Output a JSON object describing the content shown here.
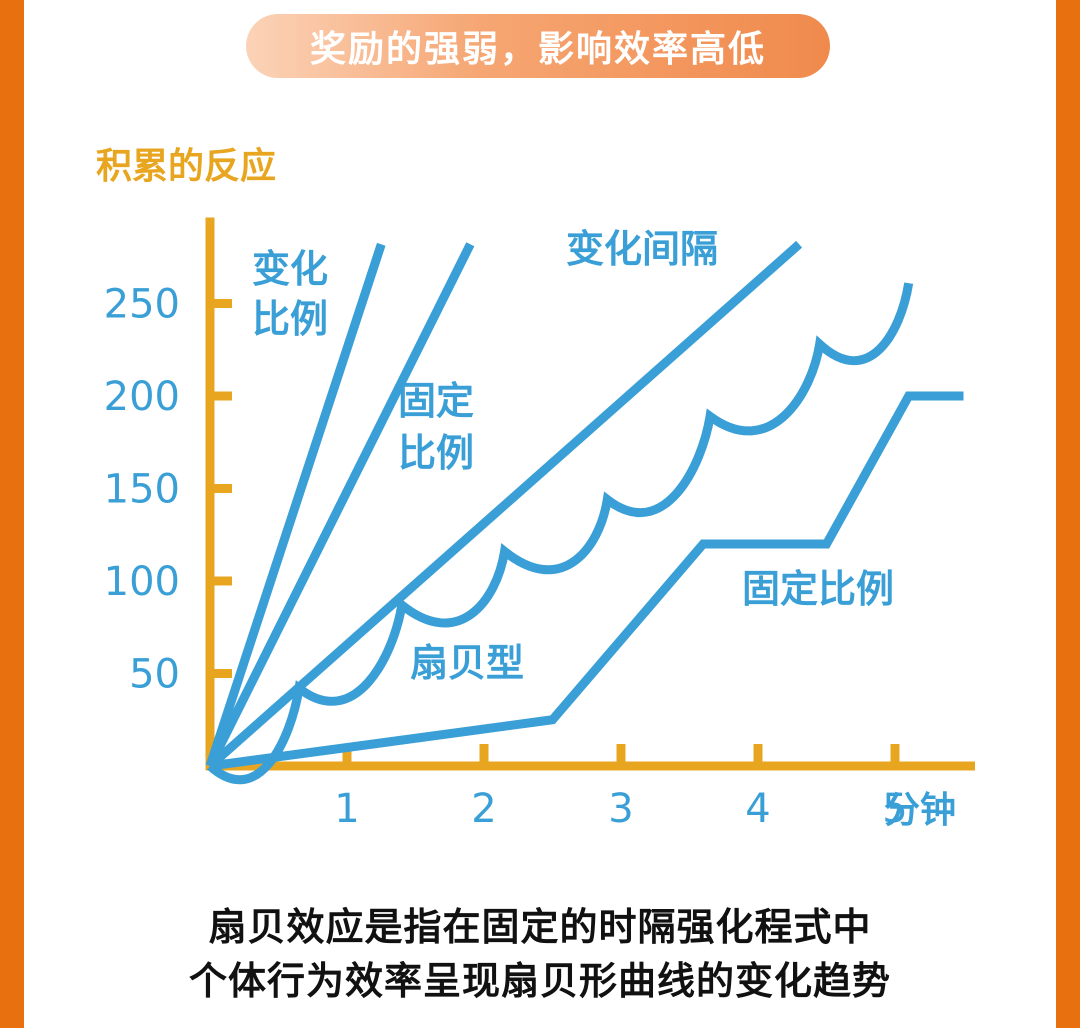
{
  "header": {
    "title": "奖励的强弱，影响效率高低"
  },
  "chart_data": {
    "type": "line",
    "ylabel": "积累的反应",
    "xlabel": "分钟",
    "x_ticks": [
      "1",
      "2",
      "3",
      "4",
      "5"
    ],
    "y_ticks": [
      "50",
      "100",
      "150",
      "200",
      "250"
    ],
    "xlim": [
      0,
      5.5
    ],
    "ylim": [
      0,
      290
    ],
    "series": [
      {
        "name": "变化比例",
        "label_lines": [
          "变化",
          "比例"
        ],
        "shape": "line",
        "points": [
          [
            0,
            0
          ],
          [
            1.25,
            282
          ]
        ]
      },
      {
        "name": "固定比例",
        "label_lines": [
          "固定",
          "比例"
        ],
        "shape": "line",
        "points": [
          [
            0,
            0
          ],
          [
            1.9,
            282
          ]
        ]
      },
      {
        "name": "变化间隔",
        "label_lines": [
          "变化间隔"
        ],
        "shape": "line",
        "points": [
          [
            0,
            0
          ],
          [
            4.3,
            282
          ]
        ]
      },
      {
        "name": "扇贝型",
        "label_lines": [
          "扇贝型"
        ],
        "shape": "scallop",
        "start": [
          0,
          0
        ],
        "scallops": [
          [
            0.65,
            42
          ],
          [
            1.4,
            87
          ],
          [
            2.15,
            116
          ],
          [
            2.9,
            144
          ],
          [
            3.65,
            189
          ],
          [
            4.45,
            228
          ],
          [
            5.1,
            261
          ]
        ]
      },
      {
        "name": "固定比例",
        "label_lines": [
          "固定比例"
        ],
        "shape": "line",
        "points": [
          [
            0,
            0
          ],
          [
            2.5,
            25
          ],
          [
            3.6,
            120
          ],
          [
            4.5,
            120
          ],
          [
            5.1,
            200
          ],
          [
            5.5,
            200
          ]
        ]
      }
    ]
  },
  "caption": {
    "line1": "扇贝效应是指在固定的时隔强化程式中",
    "line2": "个体行为效率呈现扇贝形曲线的变化趋势"
  },
  "colors": {
    "axis": "#e8a520",
    "series": "#3a9fd6",
    "frame": "#e8700f"
  }
}
